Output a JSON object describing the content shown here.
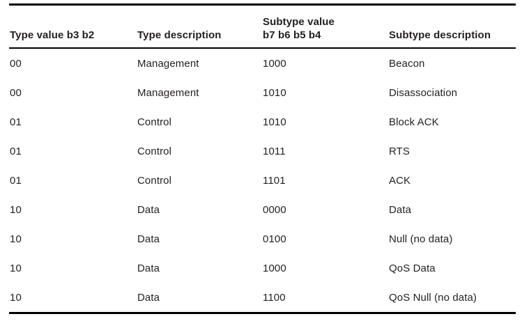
{
  "page": {
    "background": "#ffffff"
  },
  "colors": {
    "text": "#231f20",
    "rule": "#000000",
    "background": "#ffffff"
  },
  "table": {
    "columns": [
      {
        "id": "type-value",
        "lines": [
          "Type value b3 b2"
        ]
      },
      {
        "id": "type-description",
        "lines": [
          "Type description"
        ]
      },
      {
        "id": "subtype-value",
        "lines": [
          "Subtype value",
          "b7 b6 b5 b4"
        ]
      },
      {
        "id": "subtype-description",
        "lines": [
          "Subtype description"
        ]
      }
    ],
    "rows": [
      [
        "00",
        "Management",
        "1000",
        "Beacon"
      ],
      [
        "00",
        "Management",
        "1010",
        "Disassociation"
      ],
      [
        "01",
        "Control",
        "1010",
        "Block ACK"
      ],
      [
        "01",
        "Control",
        "1011",
        "RTS"
      ],
      [
        "01",
        "Control",
        "1101",
        "ACK"
      ],
      [
        "10",
        "Data",
        "0000",
        "Data"
      ],
      [
        "10",
        "Data",
        "0100",
        "Null (no data)"
      ],
      [
        "10",
        "Data",
        "1000",
        "QoS Data"
      ],
      [
        "10",
        "Data",
        "1100",
        "QoS Null (no data)"
      ]
    ]
  }
}
